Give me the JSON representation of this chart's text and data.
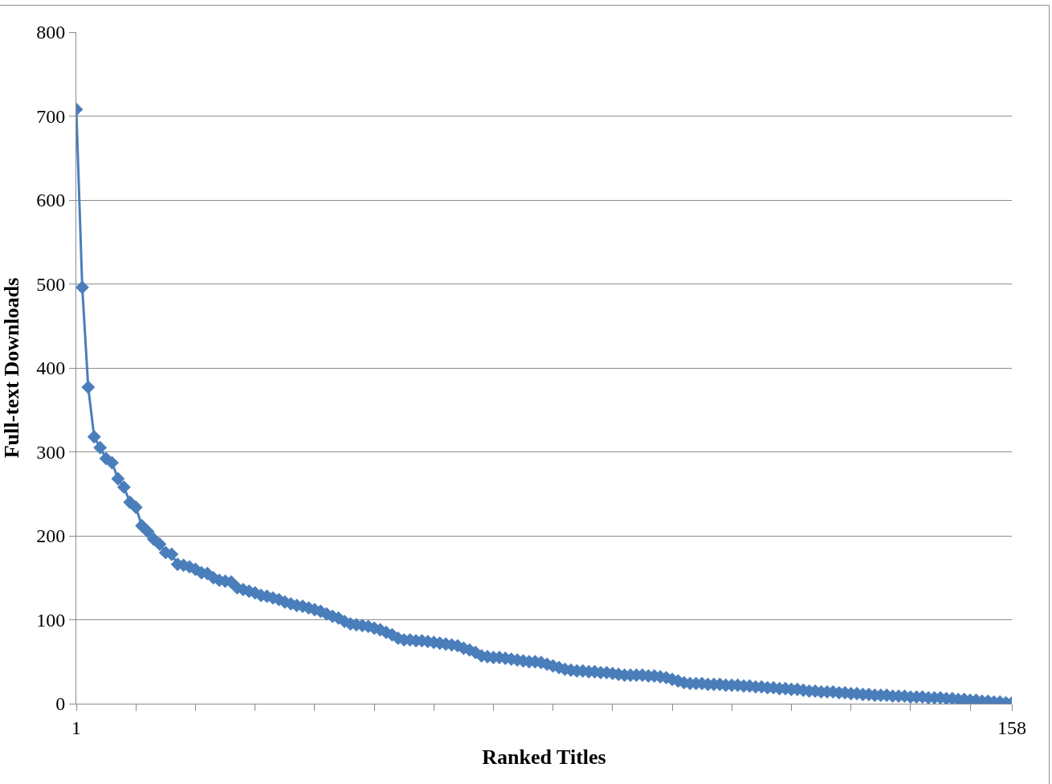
{
  "chart_data": {
    "type": "line",
    "xlabel": "Ranked Titles",
    "ylabel": "Full-text Downloads",
    "x": [
      1,
      2,
      3,
      4,
      5,
      6,
      7,
      8,
      9,
      10,
      11,
      12,
      13,
      14,
      15,
      16,
      17,
      18,
      19,
      20,
      21,
      22,
      23,
      24,
      25,
      26,
      27,
      28,
      29,
      30,
      31,
      32,
      33,
      34,
      35,
      36,
      37,
      38,
      39,
      40,
      41,
      42,
      43,
      44,
      45,
      46,
      47,
      48,
      49,
      50,
      51,
      52,
      53,
      54,
      55,
      56,
      57,
      58,
      59,
      60,
      61,
      62,
      63,
      64,
      65,
      66,
      67,
      68,
      69,
      70,
      71,
      72,
      73,
      74,
      75,
      76,
      77,
      78,
      79,
      80,
      81,
      82,
      83,
      84,
      85,
      86,
      87,
      88,
      89,
      90,
      91,
      92,
      93,
      94,
      95,
      96,
      97,
      98,
      99,
      100,
      101,
      102,
      103,
      104,
      105,
      106,
      107,
      108,
      109,
      110,
      111,
      112,
      113,
      114,
      115,
      116,
      117,
      118,
      119,
      120,
      121,
      122,
      123,
      124,
      125,
      126,
      127,
      128,
      129,
      130,
      131,
      132,
      133,
      134,
      135,
      136,
      137,
      138,
      139,
      140,
      141,
      142,
      143,
      144,
      145,
      146,
      147,
      148,
      149,
      150,
      151,
      152,
      153,
      154,
      155,
      156,
      157,
      158
    ],
    "series": [
      {
        "color": "#4a7ebb",
        "values": [
          708,
          496,
          377,
          318,
          305,
          292,
          287,
          268,
          258,
          240,
          234,
          212,
          205,
          196,
          190,
          180,
          178,
          166,
          165,
          163,
          160,
          156,
          155,
          150,
          147,
          146,
          145,
          138,
          136,
          134,
          132,
          129,
          128,
          126,
          124,
          121,
          119,
          117,
          116,
          114,
          112,
          110,
          107,
          104,
          102,
          98,
          95,
          94,
          93,
          92,
          90,
          88,
          85,
          82,
          78,
          76,
          76,
          75,
          75,
          74,
          73,
          72,
          71,
          70,
          69,
          66,
          64,
          61,
          57,
          56,
          55,
          55,
          54,
          53,
          52,
          51,
          50,
          50,
          49,
          47,
          45,
          43,
          41,
          40,
          39,
          39,
          38,
          38,
          37,
          37,
          36,
          35,
          34,
          34,
          34,
          34,
          33,
          33,
          32,
          31,
          29,
          27,
          25,
          24,
          24,
          24,
          23,
          23,
          23,
          22,
          22,
          22,
          21,
          21,
          20,
          20,
          19,
          19,
          18,
          18,
          17,
          17,
          16,
          15,
          15,
          14,
          14,
          14,
          13,
          13,
          12,
          12,
          11,
          11,
          10,
          10,
          10,
          9,
          9,
          9,
          8,
          8,
          8,
          7,
          7,
          7,
          6,
          6,
          5,
          5,
          4,
          4,
          3,
          3,
          2,
          2,
          1,
          1
        ]
      }
    ],
    "xlim": [
      1,
      158
    ],
    "xticks": [
      1,
      {
        "value": 11,
        "label": null
      },
      {
        "value": 21,
        "label": null
      },
      {
        "value": 31,
        "label": null
      },
      {
        "value": 41,
        "label": null
      },
      {
        "value": 51,
        "label": null
      },
      {
        "value": 61,
        "label": null
      },
      {
        "value": 71,
        "label": null
      },
      {
        "value": 81,
        "label": null
      },
      {
        "value": 91,
        "label": null
      },
      {
        "value": 101,
        "label": null
      },
      {
        "value": 111,
        "label": null
      },
      {
        "value": 121,
        "label": null
      },
      {
        "value": 131,
        "label": null
      },
      {
        "value": 141,
        "label": null
      },
      {
        "value": 151,
        "label": null
      },
      158
    ],
    "ylim": [
      0,
      800
    ],
    "yticks": [
      0,
      100,
      200,
      300,
      400,
      500,
      600,
      700,
      800
    ],
    "grid": "y",
    "marker": "diamond",
    "line_style": "solid"
  }
}
